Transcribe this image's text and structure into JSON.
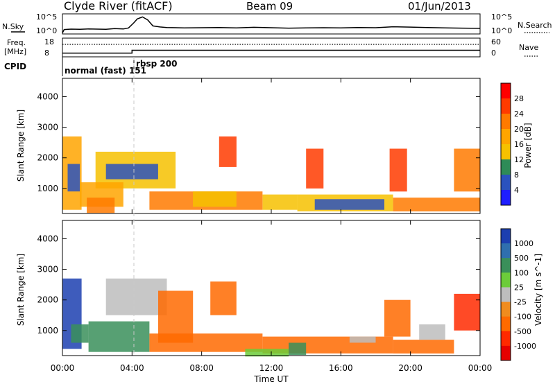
{
  "header": {
    "station": "Clyde River (fitACF)",
    "beam": "Beam 09",
    "date": "01/Jun/2013"
  },
  "labels": {
    "nsky": "N.Sky",
    "nsearch": "N.Search",
    "freq_line1": "Freq.",
    "freq_line2": "[MHz]",
    "nave": "Nave",
    "cpid": "CPID",
    "cpid_mode1": "normal (fast) 151",
    "cpid_mode2": "rbsp 200",
    "x_axis_title": "Time UT"
  },
  "chart_data": [
    {
      "type": "line",
      "name": "noise-panel",
      "ylabel_left": "N.Sky",
      "ylabel_right": "N.Search",
      "left_ticks": [
        "10^5",
        "10^0"
      ],
      "right_ticks": [
        "10^5",
        "10^0"
      ],
      "x_hours": [
        0,
        0.1,
        0.5,
        1.0,
        1.5,
        2.0,
        2.5,
        3.0,
        3.5,
        3.8,
        4.1,
        4.3,
        4.6,
        4.9,
        5.2,
        5.6,
        6.0,
        7.0,
        8.0,
        9.0,
        10.0,
        11.0,
        12.0,
        13.0,
        14.0,
        15.0,
        16.0,
        17.0,
        18.0,
        19.0,
        20.0,
        21.0,
        22.0,
        23.0,
        24.0
      ],
      "y_fraction": [
        0.05,
        0.22,
        0.24,
        0.23,
        0.25,
        0.24,
        0.23,
        0.27,
        0.25,
        0.3,
        0.55,
        0.75,
        0.85,
        0.7,
        0.4,
        0.35,
        0.32,
        0.3,
        0.31,
        0.32,
        0.3,
        0.33,
        0.31,
        0.29,
        0.3,
        0.31,
        0.3,
        0.32,
        0.31,
        0.36,
        0.34,
        0.32,
        0.3,
        0.29,
        0.28
      ]
    },
    {
      "type": "line",
      "name": "frequency-panel",
      "ylabel_left": "Freq. [MHz]",
      "ylabel_right": "Nave",
      "left_ticks": [
        "18",
        "8"
      ],
      "right_ticks": [
        "60",
        "0"
      ],
      "freq_x_hours": [
        0,
        4.0,
        4.0,
        24.0
      ],
      "freq_mhz": [
        10.0,
        10.0,
        11.5,
        11.5
      ],
      "nave_x_hours": [
        0,
        24
      ],
      "nave_value": [
        40,
        40
      ]
    },
    {
      "type": "heatmap",
      "name": "power-panel",
      "ylabel": "Slant Range [km]",
      "xlim": [
        0,
        24
      ],
      "ylim": [
        180,
        4600
      ],
      "y_ticks": [
        1000,
        2000,
        3000,
        4000
      ],
      "colorbar_title": "Power [dB]",
      "colorbar_ticks": [
        "28",
        "24",
        "20",
        "16",
        "12",
        "8",
        "4"
      ],
      "colorbar_colors": [
        "#ff0000",
        "#ff3b00",
        "#ff7a00",
        "#ffa500",
        "#f6c100",
        "#2e8b57",
        "#2a52be",
        "#1e1eff"
      ],
      "regions": [
        {
          "t0": 0.0,
          "t1": 1.1,
          "r0": 300,
          "r1": 2700,
          "level": 3
        },
        {
          "t0": 0.3,
          "t1": 1.0,
          "r0": 900,
          "r1": 1800,
          "level": 6
        },
        {
          "t0": 1.9,
          "t1": 6.5,
          "r0": 1000,
          "r1": 2200,
          "level": 4
        },
        {
          "t0": 2.5,
          "t1": 5.5,
          "r0": 1300,
          "r1": 1800,
          "level": 6
        },
        {
          "t0": 1.0,
          "t1": 3.5,
          "r0": 400,
          "r1": 1200,
          "level": 3
        },
        {
          "t0": 1.4,
          "t1": 3.0,
          "r0": 200,
          "r1": 700,
          "level": 2
        },
        {
          "t0": 5.0,
          "t1": 11.5,
          "r0": 300,
          "r1": 900,
          "level": 2
        },
        {
          "t0": 7.5,
          "t1": 10.0,
          "r0": 400,
          "r1": 900,
          "level": 4
        },
        {
          "t0": 11.5,
          "t1": 13.5,
          "r0": 300,
          "r1": 800,
          "level": 4
        },
        {
          "t0": 13.5,
          "t1": 19.0,
          "r0": 250,
          "r1": 800,
          "level": 4
        },
        {
          "t0": 14.5,
          "t1": 18.5,
          "r0": 300,
          "r1": 650,
          "level": 6
        },
        {
          "t0": 19.0,
          "t1": 24.0,
          "r0": 250,
          "r1": 700,
          "level": 2
        },
        {
          "t0": 9.0,
          "t1": 10.0,
          "r0": 1700,
          "r1": 2700,
          "level": 1
        },
        {
          "t0": 14.0,
          "t1": 15.0,
          "r0": 1000,
          "r1": 2300,
          "level": 1
        },
        {
          "t0": 18.8,
          "t1": 19.8,
          "r0": 900,
          "r1": 2300,
          "level": 1
        },
        {
          "t0": 22.5,
          "t1": 24.0,
          "r0": 900,
          "r1": 2300,
          "level": 2
        }
      ]
    },
    {
      "type": "heatmap",
      "name": "velocity-panel",
      "ylabel": "Slant Range [km]",
      "xlim": [
        0,
        24
      ],
      "ylim": [
        180,
        4600
      ],
      "y_ticks": [
        1000,
        2000,
        3000,
        4000
      ],
      "colorbar_title": "Velocity [m s^-1]",
      "colorbar_ticks": [
        "1000",
        "500",
        "100",
        "25",
        "-25",
        "-100",
        "-500",
        "-1000"
      ],
      "colorbar_colors": [
        "#1c3fb0",
        "#2f6fae",
        "#3a8f5a",
        "#6ccc3a",
        "#bdbdbd",
        "#f08c1e",
        "#ff6a00",
        "#ff2a00",
        "#e60000"
      ],
      "regions": [
        {
          "t0": 0.0,
          "t1": 1.1,
          "r0": 400,
          "r1": 2700,
          "level": 0
        },
        {
          "t0": 0.5,
          "t1": 1.5,
          "r0": 600,
          "r1": 1200,
          "level": 2
        },
        {
          "t0": 1.5,
          "t1": 5.0,
          "r0": 300,
          "r1": 1300,
          "level": 2
        },
        {
          "t0": 2.5,
          "t1": 6.0,
          "r0": 1500,
          "r1": 2700,
          "level": 4
        },
        {
          "t0": 5.5,
          "t1": 7.5,
          "r0": 600,
          "r1": 2300,
          "level": 6
        },
        {
          "t0": 5.0,
          "t1": 11.5,
          "r0": 300,
          "r1": 900,
          "level": 6
        },
        {
          "t0": 8.5,
          "t1": 10.0,
          "r0": 1500,
          "r1": 2600,
          "level": 6
        },
        {
          "t0": 11.5,
          "t1": 19.0,
          "r0": 250,
          "r1": 800,
          "level": 6
        },
        {
          "t0": 10.5,
          "t1": 13.0,
          "r0": 150,
          "r1": 400,
          "level": 3
        },
        {
          "t0": 13.0,
          "t1": 14.0,
          "r0": 200,
          "r1": 600,
          "level": 2
        },
        {
          "t0": 18.5,
          "t1": 20.0,
          "r0": 800,
          "r1": 2000,
          "level": 6
        },
        {
          "t0": 19.0,
          "t1": 22.5,
          "r0": 250,
          "r1": 700,
          "level": 6
        },
        {
          "t0": 20.5,
          "t1": 22.0,
          "r0": 700,
          "r1": 1200,
          "level": 4
        },
        {
          "t0": 22.5,
          "t1": 24.0,
          "r0": 1000,
          "r1": 2200,
          "level": 7
        },
        {
          "t0": 16.5,
          "t1": 18.0,
          "r0": 600,
          "r1": 800,
          "level": 4
        }
      ]
    }
  ],
  "x_ticks": [
    "00:00",
    "04:00",
    "08:00",
    "12:00",
    "16:00",
    "20:00",
    "00:00"
  ]
}
